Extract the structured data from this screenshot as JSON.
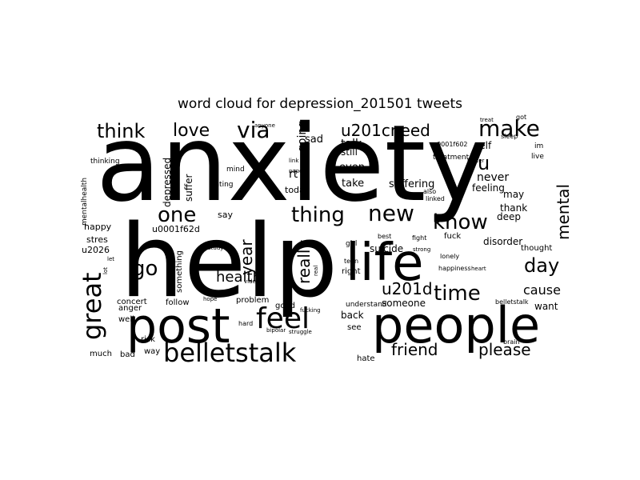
{
  "title": "word cloud for depression_201501 tweets",
  "colors": {
    "background": "#ffffff",
    "text": "#000000"
  },
  "words": [
    "anxiety",
    "help",
    "life",
    "post",
    "people",
    "belletstalk",
    "feel",
    "know",
    "time",
    "new",
    "great",
    "go",
    "health",
    "one",
    "thing",
    "via",
    "make",
    "think",
    "love",
    "u201cneed",
    "u",
    "day",
    "mental",
    "friend",
    "please",
    "cause",
    "want",
    "year",
    "really",
    "u201d",
    "someone",
    "suicide",
    "disorder",
    "thank",
    "may",
    "deep",
    "never",
    "feeling",
    "suffering",
    "take",
    "even",
    "talk",
    "still",
    "self",
    "going",
    "sad",
    "rt",
    "today",
    "depressed",
    "suffer",
    "u0001f62d",
    "say",
    "happy",
    "stres",
    "u2026",
    "anger",
    "well",
    "concert",
    "follow",
    "something",
    "problem",
    "good",
    "back",
    "see",
    "hard",
    "much",
    "bad",
    "way",
    "risk",
    "hate",
    "fucking",
    "thought",
    "mentalhealth",
    "thinking",
    "mind",
    "eating",
    "study",
    "video",
    "real",
    "right",
    "best",
    "fight",
    "fuck",
    "girl",
    "teen",
    "let",
    "lot",
    "bipolar",
    "struggle",
    "understand",
    "belletstalk",
    "brain",
    "treatment",
    "u0001f602",
    "got",
    "sleep",
    "im",
    "live",
    "nope",
    "link",
    "also",
    "linked",
    "heart",
    "treat",
    "hope",
    "anyone",
    "better",
    "strong",
    "lonely",
    "happiness",
    "work",
    "battle"
  ]
}
